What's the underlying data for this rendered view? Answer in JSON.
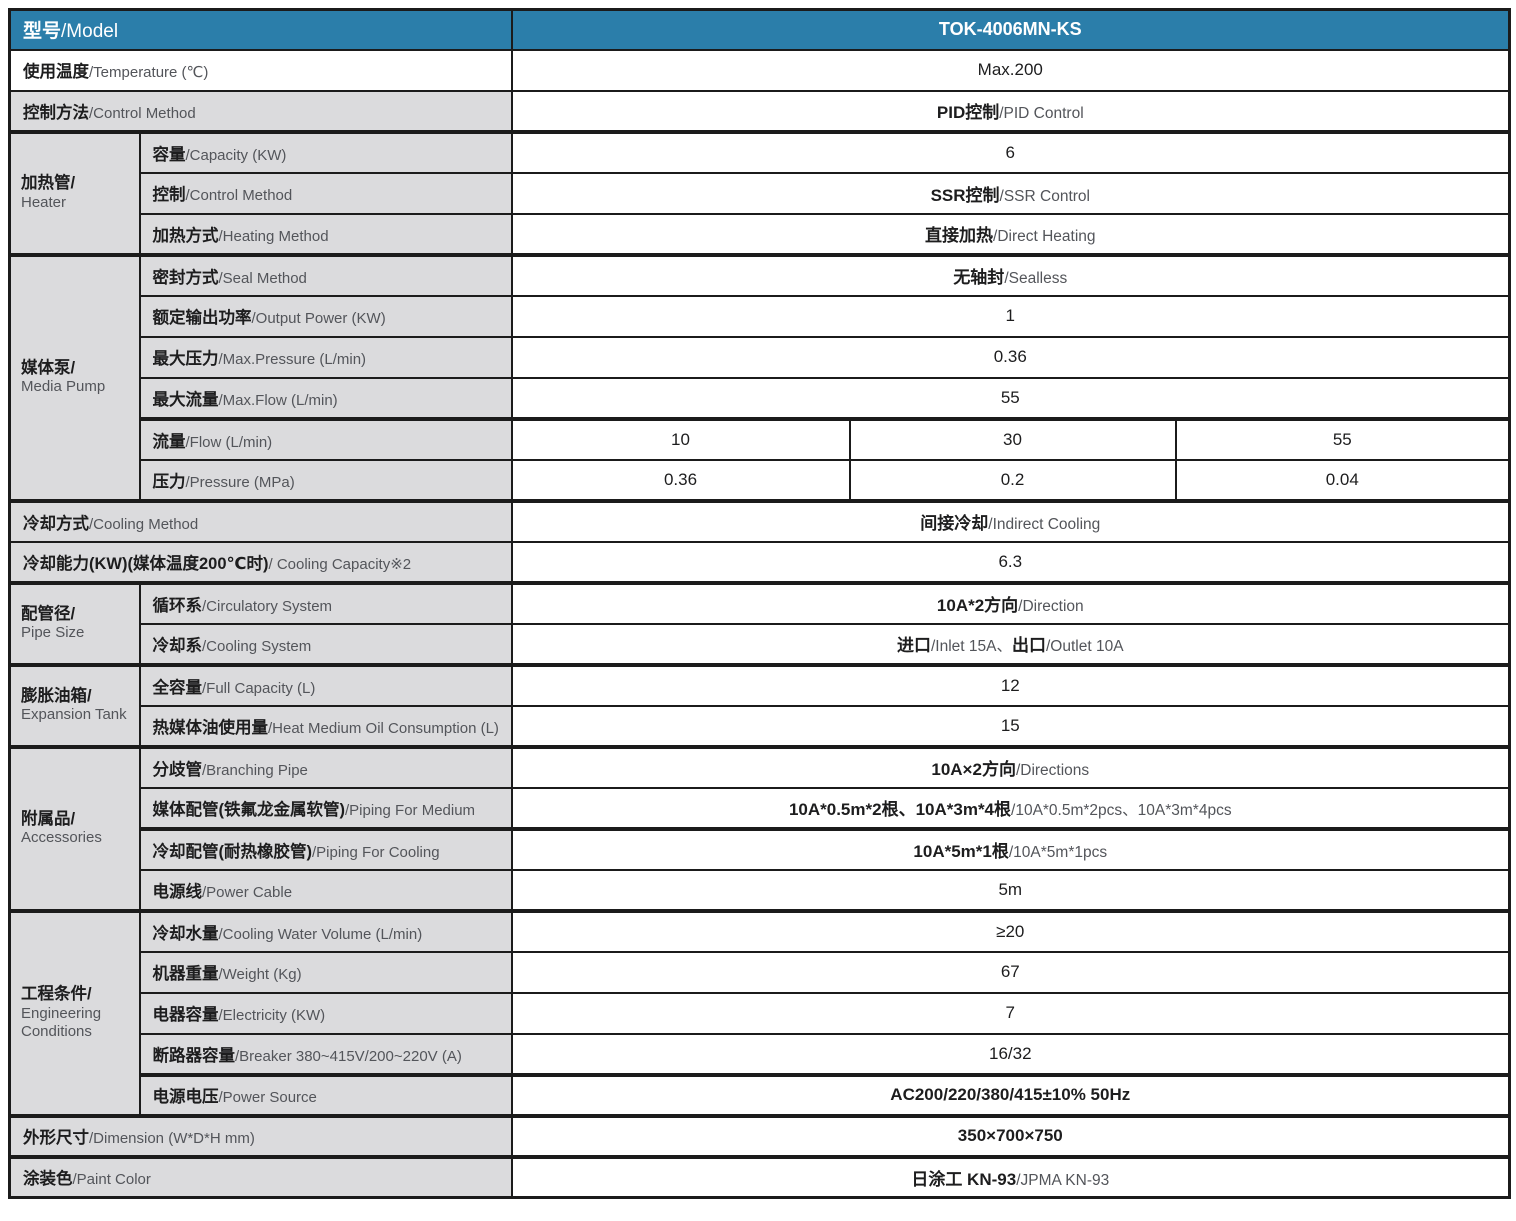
{
  "colors": {
    "header_bg": "#2b7eaa",
    "header_text": "#ffffff",
    "label_bg": "#dbdbdd",
    "border": "#1b1b1b",
    "text_dark": "#1d1d1e",
    "text_gray": "#53555a"
  },
  "header": {
    "label_zh": "型号",
    "label_en": "/Model",
    "value": "TOK-4006MN-KS"
  },
  "rows": [
    {
      "label": [
        [
          "使用温度",
          "zh"
        ],
        [
          "/Temperature (℃)",
          "en"
        ]
      ],
      "label_white": true,
      "cells": [
        [
          [
            "Max.200",
            "d"
          ]
        ]
      ]
    },
    {
      "label": [
        [
          "控制方法",
          "zh"
        ],
        [
          "/Control Method",
          "en"
        ]
      ],
      "cells": [
        [
          [
            "PID控制",
            "b"
          ],
          [
            "/PID Control",
            "g"
          ]
        ]
      ]
    },
    {
      "group": {
        "zh": "加热管/",
        "en": "Heater",
        "span": 3
      },
      "label": [
        [
          "容量",
          "zh"
        ],
        [
          "/Capacity (KW)",
          "en"
        ]
      ],
      "cells": [
        [
          [
            "6",
            "d"
          ]
        ]
      ]
    },
    {
      "label": [
        [
          "控制",
          "zh"
        ],
        [
          "/Control Method",
          "en"
        ]
      ],
      "cells": [
        [
          [
            "SSR控制",
            "b"
          ],
          [
            "/SSR Control",
            "g"
          ]
        ]
      ]
    },
    {
      "label": [
        [
          "加热方式",
          "zh"
        ],
        [
          "/Heating Method",
          "en"
        ]
      ],
      "cells": [
        [
          [
            "直接加热",
            "b"
          ],
          [
            "/Direct Heating",
            "g"
          ]
        ]
      ]
    },
    {
      "group": {
        "zh": "媒体泵/",
        "en": "Media Pump",
        "span": 6
      },
      "label": [
        [
          "密封方式",
          "zh"
        ],
        [
          "/Seal Method",
          "en"
        ]
      ],
      "cells": [
        [
          [
            "无轴封",
            "b"
          ],
          [
            "/Sealless",
            "g"
          ]
        ]
      ]
    },
    {
      "label": [
        [
          "额定输出功率",
          "zh"
        ],
        [
          "/Output Power (KW)",
          "en"
        ]
      ],
      "cells": [
        [
          [
            "1",
            "d"
          ]
        ]
      ]
    },
    {
      "label": [
        [
          "最大压力",
          "zh"
        ],
        [
          "/Max.Pressure (L/min)",
          "en"
        ]
      ],
      "cells": [
        [
          [
            "0.36",
            "d"
          ]
        ]
      ]
    },
    {
      "label": [
        [
          "最大流量",
          "zh"
        ],
        [
          "/Max.Flow (L/min)",
          "en"
        ]
      ],
      "cells": [
        [
          [
            "55",
            "d"
          ]
        ]
      ]
    },
    {
      "label": [
        [
          "流量",
          "zh"
        ],
        [
          "/Flow (L/min)",
          "en"
        ]
      ],
      "cells": [
        [
          [
            "10",
            "d"
          ]
        ],
        [
          [
            "30",
            "d"
          ]
        ],
        [
          [
            "55",
            "d"
          ]
        ]
      ]
    },
    {
      "label": [
        [
          "压力",
          "zh"
        ],
        [
          "/Pressure (MPa)",
          "en"
        ]
      ],
      "cells": [
        [
          [
            "0.36",
            "d"
          ]
        ],
        [
          [
            "0.2",
            "d"
          ]
        ],
        [
          [
            "0.04",
            "d"
          ]
        ]
      ]
    },
    {
      "label": [
        [
          "冷却方式",
          "zh"
        ],
        [
          "/Cooling Method",
          "en"
        ]
      ],
      "cells": [
        [
          [
            "间接冷却",
            "b"
          ],
          [
            "/Indirect Cooling",
            "g"
          ]
        ]
      ]
    },
    {
      "label": [
        [
          "冷却能力(KW)(媒体温度200℃时)",
          "zh"
        ],
        [
          "/ Cooling Capacity※2",
          "en"
        ]
      ],
      "cells": [
        [
          [
            "6.3",
            "d"
          ]
        ]
      ]
    },
    {
      "group": {
        "zh": "配管径/",
        "en": "Pipe Size",
        "span": 2
      },
      "label": [
        [
          "循环系",
          "zh"
        ],
        [
          "/Circulatory System",
          "en"
        ]
      ],
      "cells": [
        [
          [
            "10A*2方向",
            "b"
          ],
          [
            "/Direction",
            "g"
          ]
        ]
      ]
    },
    {
      "label": [
        [
          "冷却系",
          "zh"
        ],
        [
          "/Cooling System",
          "en"
        ]
      ],
      "cells": [
        [
          [
            "进口",
            "b"
          ],
          [
            "/Inlet 15A、",
            "g"
          ],
          [
            "出口",
            "b"
          ],
          [
            "/Outlet 10A",
            "g"
          ]
        ]
      ]
    },
    {
      "group": {
        "zh": "膨胀油箱/",
        "en": "Expansion Tank",
        "span": 2
      },
      "label": [
        [
          "全容量",
          "zh"
        ],
        [
          "/Full Capacity (L)",
          "en"
        ]
      ],
      "cells": [
        [
          [
            "12",
            "d"
          ]
        ]
      ]
    },
    {
      "label": [
        [
          "热媒体油使用量",
          "zh"
        ],
        [
          "/Heat Medium Oil Consumption (L)",
          "en"
        ]
      ],
      "cells": [
        [
          [
            "15",
            "d"
          ]
        ]
      ]
    },
    {
      "group": {
        "zh": "附属品/",
        "en": "Accessories",
        "span": 4
      },
      "label": [
        [
          "分歧管",
          "zh"
        ],
        [
          "/Branching Pipe",
          "en"
        ]
      ],
      "cells": [
        [
          [
            "10A×2方向",
            "b"
          ],
          [
            "/Directions",
            "g"
          ]
        ]
      ]
    },
    {
      "label": [
        [
          "媒体配管(铁氟龙金属软管)",
          "zh"
        ],
        [
          "/Piping For Medium",
          "en"
        ]
      ],
      "cells": [
        [
          [
            "10A*0.5m*2根、10A*3m*4根",
            "b"
          ],
          [
            "/10A*0.5m*2pcs、10A*3m*4pcs",
            "g"
          ]
        ]
      ]
    },
    {
      "label": [
        [
          "冷却配管(耐热橡胶管)",
          "zh"
        ],
        [
          "/Piping For Cooling",
          "en"
        ]
      ],
      "cells": [
        [
          [
            "10A*5m*1根",
            "b"
          ],
          [
            "/10A*5m*1pcs",
            "g"
          ]
        ]
      ]
    },
    {
      "label": [
        [
          "电源线",
          "zh"
        ],
        [
          "/Power Cable",
          "en"
        ]
      ],
      "cells": [
        [
          [
            "5m",
            "d"
          ]
        ]
      ]
    },
    {
      "group": {
        "zh": "工程条件/",
        "en": "Engineering Conditions",
        "span": 5
      },
      "label": [
        [
          "冷却水量",
          "zh"
        ],
        [
          "/Cooling Water Volume (L/min)",
          "en"
        ]
      ],
      "cells": [
        [
          [
            "≥20",
            "d"
          ]
        ]
      ]
    },
    {
      "label": [
        [
          "机器重量",
          "zh"
        ],
        [
          "/Weight (Kg)",
          "en"
        ]
      ],
      "cells": [
        [
          [
            "67",
            "d"
          ]
        ]
      ]
    },
    {
      "label": [
        [
          "电器容量",
          "zh"
        ],
        [
          "/Electricity (KW)",
          "en"
        ]
      ],
      "cells": [
        [
          [
            "7",
            "d"
          ]
        ]
      ]
    },
    {
      "label": [
        [
          "断路器容量",
          "zh"
        ],
        [
          "/Breaker 380~415V/200~220V (A)",
          "en"
        ]
      ],
      "cells": [
        [
          [
            "16/32",
            "d"
          ]
        ]
      ]
    },
    {
      "label": [
        [
          "电源电压",
          "zh"
        ],
        [
          "/Power Source",
          "en"
        ]
      ],
      "cells": [
        [
          [
            "AC200/220/380/415±10% 50Hz",
            "b"
          ]
        ]
      ]
    },
    {
      "label": [
        [
          "外形尺寸",
          "zh"
        ],
        [
          "/Dimension (W*D*H mm)",
          "en"
        ]
      ],
      "cells": [
        [
          [
            "350×700×750",
            "b"
          ]
        ]
      ]
    },
    {
      "label": [
        [
          "涂装色",
          "zh"
        ],
        [
          "/Paint Color",
          "en"
        ]
      ],
      "cells": [
        [
          [
            "日涂工 KN-93",
            "b"
          ],
          [
            "/JPMA KN-93",
            "g"
          ]
        ]
      ]
    }
  ]
}
